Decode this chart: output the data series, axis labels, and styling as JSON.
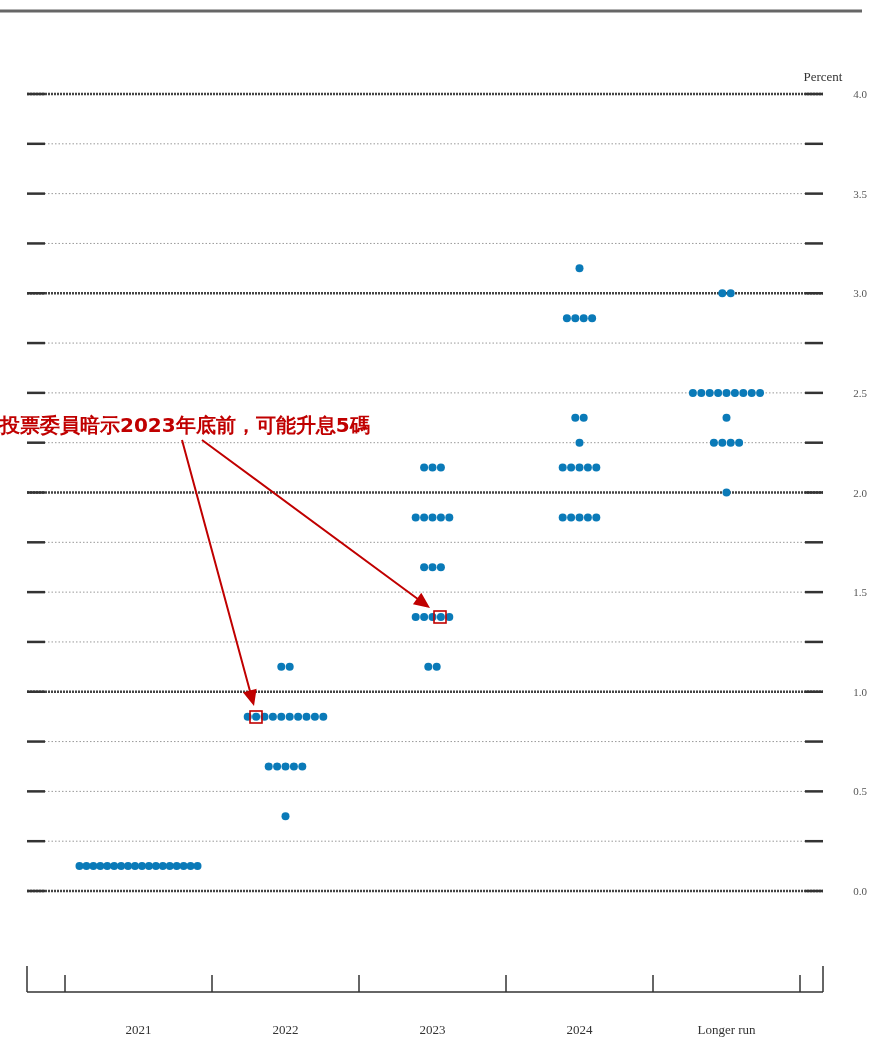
{
  "chart_data": {
    "type": "scatter",
    "ylabel": "Percent",
    "categories": [
      "2021",
      "2022",
      "2023",
      "2024",
      "Longer run"
    ],
    "ylim": [
      0,
      4
    ],
    "yticks": [
      {
        "value": 0,
        "label": "0.0"
      },
      {
        "value": 0.25,
        "label": null
      },
      0.5,
      {
        "value": 0.75,
        "label": null
      },
      {
        "value": 1,
        "label": "1.0"
      },
      {
        "value": 1.25,
        "label": null
      },
      1.5,
      {
        "value": 1.75,
        "label": null
      },
      {
        "value": 2,
        "label": "2.0"
      },
      {
        "value": 2.25,
        "label": null
      },
      2.5,
      {
        "value": 2.75,
        "label": null
      },
      {
        "value": 3,
        "label": "3.0"
      },
      {
        "value": 3.25,
        "label": null
      },
      3.5,
      {
        "value": 3.75,
        "label": null
      },
      {
        "value": 4,
        "label": "4.0"
      }
    ],
    "grid": "y",
    "marker": "circle",
    "series": [
      {
        "color": "#0a7ab8",
        "values": [
          0.125,
          1.125,
          2.125,
          3.125,
          3
        ]
      },
      {
        "color": "#0a7ab8",
        "values": [
          0.125,
          1.125,
          2.125,
          2.875,
          3
        ]
      },
      {
        "color": "#0a7ab8",
        "values": [
          0.125,
          0.875,
          2.125,
          2.875,
          2.5
        ]
      },
      {
        "color": "#0a7ab8",
        "values": [
          0.125,
          0.875,
          1.875,
          2.875,
          2.5
        ]
      },
      {
        "color": "#0a7ab8",
        "values": [
          0.125,
          0.875,
          1.875,
          2.875,
          2.5
        ]
      },
      {
        "color": "#0a7ab8",
        "values": [
          0.125,
          0.875,
          1.875,
          2.375,
          2.5
        ]
      },
      {
        "color": "#0a7ab8",
        "values": [
          0.125,
          0.875,
          1.875,
          2.375,
          2.5
        ]
      },
      {
        "color": "#0a7ab8",
        "values": [
          0.125,
          0.875,
          1.875,
          2.25,
          2.5
        ]
      },
      {
        "color": "#0a7ab8",
        "values": [
          0.125,
          0.875,
          1.625,
          2.125,
          2.5
        ]
      },
      {
        "color": "#0a7ab8",
        "values": [
          0.125,
          0.875,
          1.625,
          2.125,
          2.5
        ]
      },
      {
        "color": "#0a7ab8",
        "values": [
          0.125,
          0.875,
          1.625,
          2.125,
          2.5
        ]
      },
      {
        "color": "#0a7ab8",
        "values": [
          0.125,
          0.875,
          1.375,
          2.125,
          2.375
        ]
      },
      {
        "color": "#0a7ab8",
        "values": [
          0.125,
          0.625,
          1.375,
          2.125,
          2.25
        ]
      },
      {
        "color": "#0a7ab8",
        "values": [
          0.125,
          0.625,
          1.375,
          1.875,
          2.25
        ]
      },
      {
        "color": "#0a7ab8",
        "values": [
          0.125,
          0.625,
          1.375,
          1.875,
          2.25
        ]
      },
      {
        "color": "#0a7ab8",
        "values": [
          0.125,
          0.625,
          1.375,
          1.875,
          2.25
        ]
      },
      {
        "color": "#0a7ab8",
        "values": [
          0.125,
          0.625,
          1.125,
          1.875,
          2
        ]
      },
      {
        "color": "#0a7ab8",
        "values": [
          0.125,
          0.375,
          1.125,
          1.875,
          null
        ]
      }
    ],
    "annotations": [
      "投票委員暗示2023年底前，可能升息5碼"
    ]
  }
}
